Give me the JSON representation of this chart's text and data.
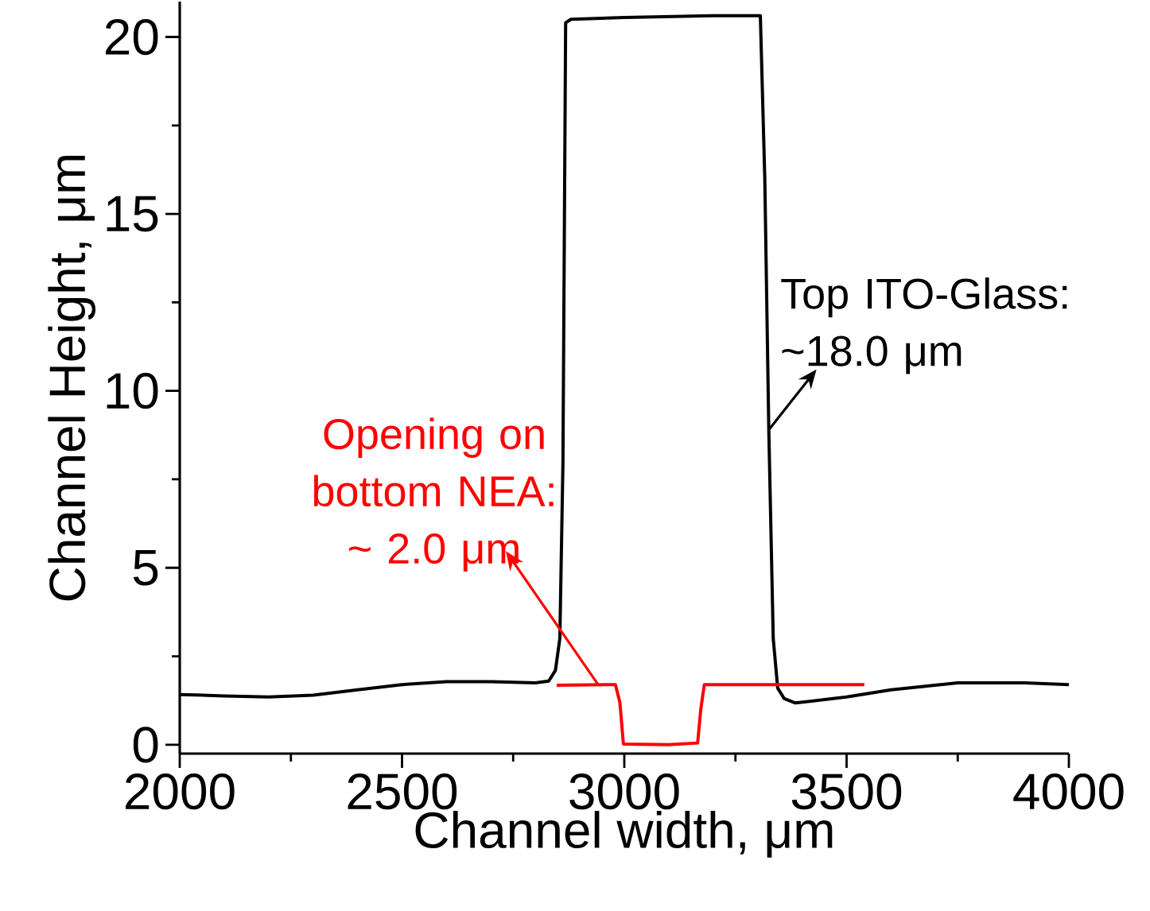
{
  "chart_data": {
    "type": "line",
    "xlabel": "Channel width, μm",
    "ylabel": "Channel Height, μm",
    "xlim": [
      2000,
      4000
    ],
    "ylim": [
      -0.25,
      21
    ],
    "xticks": [
      2000,
      2500,
      3000,
      3500,
      4000
    ],
    "yticks": [
      0,
      5,
      10,
      15,
      20
    ],
    "grid": false,
    "line_style": "solid",
    "marker": "none",
    "series": [
      {
        "color": "#000000",
        "x": [
          2000,
          2100,
          2200,
          2300,
          2400,
          2500,
          2600,
          2700,
          2800,
          2830,
          2845,
          2855,
          2862,
          2868,
          2880,
          3000,
          3200,
          3306,
          3316,
          3325,
          3335,
          3345,
          3360,
          3385,
          3500,
          3600,
          3750,
          3900,
          4000
        ],
        "values": [
          1.42,
          1.38,
          1.35,
          1.4,
          1.55,
          1.7,
          1.78,
          1.78,
          1.75,
          1.8,
          2.1,
          3.0,
          8,
          20.4,
          20.5,
          20.55,
          20.6,
          20.6,
          16,
          8.9,
          3,
          1.6,
          1.3,
          1.18,
          1.35,
          1.55,
          1.75,
          1.75,
          1.7
        ]
      },
      {
        "color": "#ff0000",
        "x": [
          2848,
          2980,
          2990,
          2998,
          3100,
          3165,
          3172,
          3180,
          3300,
          3540
        ],
        "values": [
          1.68,
          1.7,
          1.2,
          0.02,
          0,
          0.05,
          1.0,
          1.7,
          1.7,
          1.7
        ]
      }
    ],
    "annotations": [
      {
        "text": "Top ITO-Glass: ~18.0 μm",
        "x": 3325,
        "y": 8.9
      },
      {
        "text": "Opening on bottom NEA: ~ 2.0 μm",
        "x": 2941,
        "y": 1.7
      }
    ]
  }
}
